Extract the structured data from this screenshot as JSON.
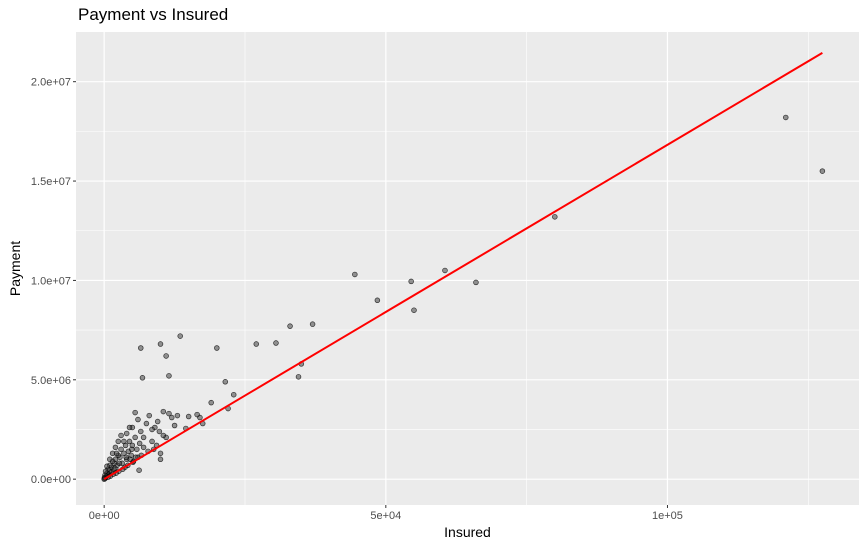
{
  "chart_data": {
    "type": "scatter",
    "title": "Payment vs Insured",
    "xlabel": "Insured",
    "ylabel": "Payment",
    "xlim": [
      -5000,
      134000
    ],
    "ylim": [
      -1300000,
      22500000
    ],
    "x_ticks": [
      0,
      50000,
      100000
    ],
    "x_tick_labels": [
      "0e+00",
      "5e+04",
      "1e+05"
    ],
    "y_ticks": [
      0,
      5000000,
      10000000,
      15000000,
      20000000
    ],
    "y_tick_labels": [
      "0.0e+00",
      "5.0e+06",
      "1.0e+07",
      "1.5e+07",
      "2.0e+07"
    ],
    "grid": true,
    "background": "#ebebeb",
    "point_color": "#333333",
    "line_color": "#ff0000",
    "fit_line": {
      "x": [
        0,
        127500
      ],
      "y": [
        0,
        21450000
      ]
    },
    "points": [
      [
        127500,
        15500000
      ],
      [
        121000,
        18200000
      ],
      [
        80000,
        13200000
      ],
      [
        66000,
        9900000
      ],
      [
        60500,
        10500000
      ],
      [
        55000,
        8500000
      ],
      [
        54500,
        9950000
      ],
      [
        48500,
        9000000
      ],
      [
        44500,
        10300000
      ],
      [
        37000,
        7800000
      ],
      [
        35000,
        5800000
      ],
      [
        34500,
        5150000
      ],
      [
        33000,
        7700000
      ],
      [
        30500,
        6850000
      ],
      [
        27000,
        6800000
      ],
      [
        23000,
        4250000
      ],
      [
        22000,
        3550000
      ],
      [
        21500,
        4900000
      ],
      [
        20000,
        6600000
      ],
      [
        19000,
        3850000
      ],
      [
        17500,
        2800000
      ],
      [
        17000,
        3100000
      ],
      [
        16500,
        3250000
      ],
      [
        15000,
        3150000
      ],
      [
        14500,
        2550000
      ],
      [
        13500,
        7200000
      ],
      [
        13000,
        3200000
      ],
      [
        12500,
        2700000
      ],
      [
        12000,
        3100000
      ],
      [
        11500,
        5200000
      ],
      [
        11500,
        3300000
      ],
      [
        11000,
        6200000
      ],
      [
        11000,
        2100000
      ],
      [
        10500,
        3400000
      ],
      [
        10500,
        2200000
      ],
      [
        10000,
        1300000
      ],
      [
        10000,
        1000000
      ],
      [
        10000,
        6800000
      ],
      [
        9800,
        2400000
      ],
      [
        9500,
        2900000
      ],
      [
        9000,
        2600000
      ],
      [
        8500,
        2500000
      ],
      [
        8500,
        1900000
      ],
      [
        8000,
        3200000
      ],
      [
        7500,
        2800000
      ],
      [
        7000,
        2100000
      ],
      [
        7000,
        1600000
      ],
      [
        6800,
        5100000
      ],
      [
        6500,
        6600000
      ],
      [
        6500,
        2400000
      ],
      [
        6200,
        450000
      ],
      [
        6000,
        3000000
      ],
      [
        6000,
        1100000
      ],
      [
        5800,
        1500000
      ],
      [
        5500,
        3350000
      ],
      [
        5500,
        2100000
      ],
      [
        5200,
        900000
      ],
      [
        5000,
        2600000
      ],
      [
        5000,
        1700000
      ],
      [
        4800,
        1200000
      ],
      [
        4500,
        2600000
      ],
      [
        4500,
        1900000
      ],
      [
        4300,
        1400000
      ],
      [
        4000,
        2300000
      ],
      [
        4000,
        1000000
      ],
      [
        3800,
        1700000
      ],
      [
        3500,
        1900000
      ],
      [
        3500,
        1300000
      ],
      [
        3200,
        800000
      ],
      [
        3000,
        1500000
      ],
      [
        3000,
        2200000
      ],
      [
        2800,
        1100000
      ],
      [
        2500,
        1900000
      ],
      [
        2500,
        1200000
      ],
      [
        2300,
        700000
      ],
      [
        2200,
        1300000
      ],
      [
        2000,
        1000000
      ],
      [
        2000,
        1600000
      ],
      [
        1800,
        800000
      ],
      [
        1700,
        500000
      ],
      [
        1500,
        900000
      ],
      [
        1500,
        1300000
      ],
      [
        1300,
        600000
      ],
      [
        1200,
        350000
      ],
      [
        1000,
        700000
      ],
      [
        1000,
        1000000
      ],
      [
        900,
        400000
      ],
      [
        800,
        250000
      ],
      [
        700,
        500000
      ],
      [
        600,
        200000
      ],
      [
        500,
        650000
      ],
      [
        500,
        300000
      ],
      [
        400,
        150000
      ],
      [
        300,
        100000
      ],
      [
        250,
        400000
      ],
      [
        200,
        50000
      ],
      [
        150,
        200000
      ],
      [
        100,
        30000
      ],
      [
        50,
        80000
      ],
      [
        0,
        0
      ],
      [
        1100,
        150000
      ],
      [
        2600,
        400000
      ],
      [
        3700,
        600000
      ],
      [
        4200,
        700000
      ],
      [
        5100,
        850000
      ],
      [
        6600,
        1200000
      ],
      [
        7800,
        1400000
      ],
      [
        8800,
        1500000
      ],
      [
        9300,
        1700000
      ],
      [
        2100,
        300000
      ],
      [
        1600,
        250000
      ],
      [
        3300,
        500000
      ],
      [
        4600,
        1000000
      ],
      [
        5600,
        1100000
      ],
      [
        700,
        100000
      ],
      [
        1900,
        550000
      ],
      [
        2700,
        800000
      ],
      [
        3900,
        1100000
      ],
      [
        4900,
        1500000
      ],
      [
        6300,
        1800000
      ]
    ]
  }
}
